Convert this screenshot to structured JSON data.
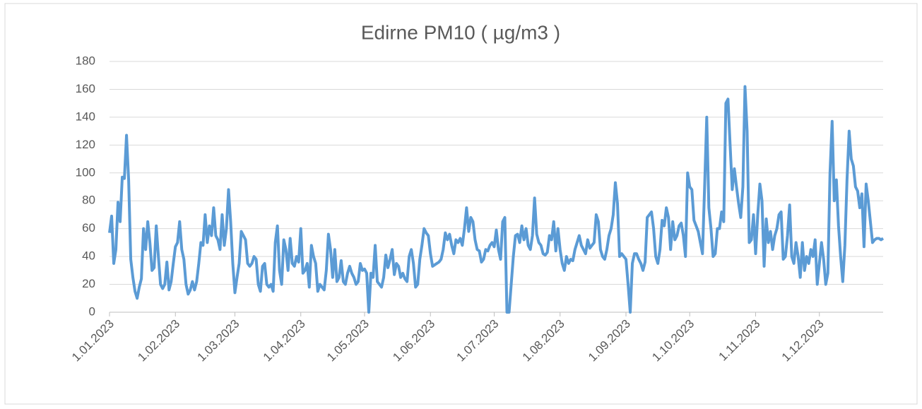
{
  "chart_data": {
    "type": "line",
    "title": "Edirne PM10 ( µg/m3 )",
    "categories": [
      "1.01.2023",
      null,
      null,
      null,
      null,
      null,
      null,
      null,
      null,
      null,
      null,
      null,
      null,
      null,
      null,
      null,
      null,
      null,
      null,
      null,
      null,
      null,
      null,
      null,
      null,
      null,
      null,
      null,
      null,
      null,
      null,
      "1.02.2023",
      null,
      null,
      null,
      null,
      null,
      null,
      null,
      null,
      null,
      null,
      null,
      null,
      null,
      null,
      null,
      null,
      null,
      null,
      null,
      null,
      null,
      null,
      null,
      null,
      null,
      null,
      null,
      "1.03.2023",
      null,
      null,
      null,
      null,
      null,
      null,
      null,
      null,
      null,
      null,
      null,
      null,
      null,
      null,
      null,
      null,
      null,
      null,
      null,
      null,
      null,
      null,
      null,
      null,
      null,
      null,
      null,
      null,
      null,
      null,
      "1.04.2023",
      null,
      null,
      null,
      null,
      null,
      null,
      null,
      null,
      null,
      null,
      null,
      null,
      null,
      null,
      null,
      null,
      null,
      null,
      null,
      null,
      null,
      null,
      null,
      null,
      null,
      null,
      null,
      null,
      null,
      "1.05.2023",
      null,
      null,
      null,
      null,
      null,
      null,
      null,
      null,
      null,
      null,
      null,
      null,
      null,
      null,
      null,
      null,
      null,
      null,
      null,
      null,
      null,
      null,
      null,
      null,
      null,
      null,
      null,
      null,
      null,
      null,
      "1.06.2023",
      null,
      null,
      null,
      null,
      null,
      null,
      null,
      null,
      null,
      null,
      null,
      null,
      null,
      null,
      null,
      null,
      null,
      null,
      null,
      null,
      null,
      null,
      null,
      null,
      null,
      null,
      null,
      null,
      null,
      "1.07.2023",
      null,
      null,
      null,
      null,
      null,
      null,
      null,
      null,
      null,
      null,
      null,
      null,
      null,
      null,
      null,
      null,
      null,
      null,
      null,
      null,
      null,
      null,
      null,
      null,
      null,
      null,
      null,
      null,
      null,
      null,
      "1.08.2023",
      null,
      null,
      null,
      null,
      null,
      null,
      null,
      null,
      null,
      null,
      null,
      null,
      null,
      null,
      null,
      null,
      null,
      null,
      null,
      null,
      null,
      null,
      null,
      null,
      null,
      null,
      null,
      null,
      null,
      null,
      "1.09.2023",
      null,
      null,
      null,
      null,
      null,
      null,
      null,
      null,
      null,
      null,
      null,
      null,
      null,
      null,
      null,
      null,
      null,
      null,
      null,
      null,
      null,
      null,
      null,
      null,
      null,
      null,
      null,
      null,
      null,
      "1.10.2023",
      null,
      null,
      null,
      null,
      null,
      null,
      null,
      null,
      null,
      null,
      null,
      null,
      null,
      null,
      null,
      null,
      null,
      null,
      null,
      null,
      null,
      null,
      null,
      null,
      null,
      null,
      null,
      null,
      null,
      null,
      "1.11.2023",
      null,
      null,
      null,
      null,
      null,
      null,
      null,
      null,
      null,
      null,
      null,
      null,
      null,
      null,
      null,
      null,
      null,
      null,
      null,
      null,
      null,
      null,
      null,
      null,
      null,
      null,
      null,
      null,
      null,
      "1.12.2023",
      null,
      null,
      null,
      null,
      null,
      null,
      null,
      null,
      null,
      null,
      null,
      null,
      null,
      null,
      null,
      null,
      null,
      null,
      null,
      null,
      null,
      null,
      null,
      null,
      null,
      null,
      null,
      null,
      null,
      null
    ],
    "values": [
      57,
      69,
      35,
      45,
      79,
      65,
      97,
      96,
      127,
      95,
      38,
      25,
      15,
      10,
      18,
      24,
      60,
      45,
      65,
      50,
      30,
      32,
      62,
      40,
      20,
      17,
      20,
      36,
      16,
      22,
      35,
      47,
      50,
      65,
      45,
      38,
      20,
      13,
      16,
      22,
      16,
      22,
      35,
      50,
      48,
      70,
      50,
      62,
      55,
      75,
      55,
      52,
      45,
      70,
      48,
      60,
      88,
      65,
      35,
      14,
      25,
      35,
      58,
      55,
      52,
      35,
      33,
      35,
      40,
      38,
      20,
      15,
      33,
      35,
      20,
      18,
      20,
      15,
      50,
      62,
      30,
      20,
      52,
      45,
      30,
      53,
      35,
      33,
      40,
      36,
      60,
      28,
      30,
      35,
      18,
      48,
      40,
      35,
      15,
      20,
      18,
      16,
      30,
      56,
      45,
      25,
      45,
      22,
      25,
      37,
      22,
      20,
      28,
      33,
      28,
      25,
      20,
      22,
      35,
      30,
      31,
      28,
      0,
      28,
      25,
      48,
      22,
      20,
      18,
      25,
      41,
      32,
      38,
      45,
      27,
      35,
      33,
      25,
      28,
      24,
      22,
      40,
      45,
      35,
      18,
      20,
      38,
      48,
      60,
      57,
      55,
      42,
      33,
      34,
      35,
      36,
      38,
      45,
      57,
      52,
      56,
      48,
      42,
      52,
      50,
      53,
      48,
      60,
      75,
      58,
      68,
      65,
      52,
      45,
      44,
      36,
      38,
      45,
      44,
      48,
      50,
      47,
      59,
      45,
      38,
      65,
      68,
      0,
      0,
      20,
      40,
      55,
      56,
      50,
      62,
      52,
      60,
      48,
      45,
      55,
      82,
      56,
      50,
      48,
      42,
      41,
      43,
      55,
      52,
      65,
      44,
      60,
      45,
      35,
      30,
      40,
      35,
      38,
      37,
      45,
      50,
      55,
      48,
      45,
      42,
      52,
      46,
      48,
      50,
      70,
      65,
      45,
      40,
      38,
      45,
      55,
      60,
      70,
      93,
      78,
      40,
      42,
      40,
      38,
      20,
      0,
      35,
      42,
      42,
      38,
      35,
      30,
      36,
      68,
      70,
      72,
      60,
      40,
      35,
      45,
      66,
      62,
      75,
      68,
      45,
      65,
      52,
      55,
      62,
      64,
      55,
      40,
      100,
      90,
      88,
      66,
      62,
      58,
      50,
      42,
      90,
      140,
      75,
      60,
      40,
      42,
      60,
      60,
      72,
      65,
      150,
      153,
      120,
      88,
      103,
      90,
      78,
      68,
      90,
      162,
      130,
      50,
      52,
      70,
      42,
      70,
      92,
      80,
      33,
      67,
      50,
      58,
      45,
      55,
      60,
      70,
      72,
      38,
      40,
      55,
      77,
      40,
      35,
      50,
      40,
      25,
      50,
      30,
      40,
      35,
      45,
      40,
      52,
      20,
      35,
      50,
      38,
      20,
      28,
      100,
      137,
      80,
      95,
      62,
      40,
      22,
      48,
      95,
      130,
      110,
      105,
      90,
      87,
      75,
      85,
      47,
      92,
      80,
      65,
      50,
      52,
      53,
      53,
      52,
      53
    ],
    "color": "#5b9bd5",
    "ylim": [
      0,
      180
    ],
    "yticks": [
      0,
      20,
      40,
      60,
      80,
      100,
      120,
      140,
      160,
      180
    ],
    "grid": true
  }
}
